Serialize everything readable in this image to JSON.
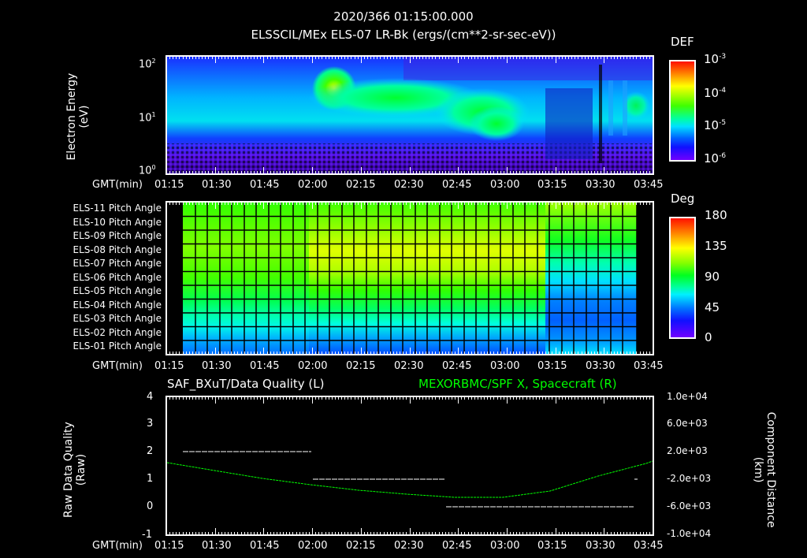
{
  "header": {
    "timestamp": "2020/366 01:15:00.000",
    "subtitle": "ELSSCIL/MEx ELS-07 LR-Bk  (ergs/(cm**2-sr-sec-eV))"
  },
  "time_axis": {
    "label": "GMT(min)",
    "ticks": [
      "01:15",
      "01:30",
      "01:45",
      "02:00",
      "02:15",
      "02:30",
      "02:45",
      "03:00",
      "03:15",
      "03:30",
      "03:45"
    ]
  },
  "spectrogram_panel": {
    "ylabel_line1": "Electron Energy",
    "ylabel_line2": "(eV)",
    "yticks": [
      {
        "base": "10",
        "exp": "2"
      },
      {
        "base": "10",
        "exp": "1"
      },
      {
        "base": "10",
        "exp": "0"
      }
    ],
    "colorbar": {
      "title": "DEF",
      "ticks": [
        {
          "base": "10",
          "exp": "-3"
        },
        {
          "base": "10",
          "exp": "-4"
        },
        {
          "base": "10",
          "exp": "-5"
        },
        {
          "base": "10",
          "exp": "-6"
        }
      ]
    }
  },
  "pitch_panel": {
    "rows": [
      "ELS-11 Pitch Angle",
      "ELS-10 Pitch Angle",
      "ELS-09 Pitch Angle",
      "ELS-08 Pitch Angle",
      "ELS-07 Pitch Angle",
      "ELS-06 Pitch Angle",
      "ELS-05 Pitch Angle",
      "ELS-04 Pitch Angle",
      "ELS-03 Pitch Angle",
      "ELS-02 Pitch Angle",
      "ELS-01 Pitch Angle"
    ],
    "colorbar": {
      "title": "Deg",
      "ticks": [
        "180",
        "135",
        "90",
        "45",
        "0"
      ]
    }
  },
  "line_panel": {
    "left_title": "SAF_BXuT/Data Quality (L)",
    "right_title": "MEXORBMC/SPF X, Spacecraft (R)",
    "right_title_color": "#00ff00",
    "ylabel_left_line1": "Raw Data Quality",
    "ylabel_left_line2": "(Raw)",
    "ylabel_right_line1": "Component Distance",
    "ylabel_right_line2": "(km)",
    "left_ticks": [
      "4",
      "3",
      "2",
      "1",
      "0",
      "-1"
    ],
    "right_ticks": [
      "1.0e+04",
      "6.0e+03",
      "2.0e+03",
      "-2.0e+03",
      "-6.0e+03",
      "-1.0e+04"
    ]
  },
  "chart_data": [
    {
      "type": "heatmap",
      "title": "ELSSCIL/MEx ELS-07 LR-Bk (ergs/(cm**2-sr-sec-eV))",
      "xlabel": "GMT(min)",
      "ylabel": "Electron Energy (eV)",
      "x_range": [
        "01:15",
        "03:45"
      ],
      "y_scale": "log",
      "ylim": [
        1,
        150
      ],
      "colorbar": {
        "label": "DEF",
        "scale": "log",
        "range": [
          1e-06,
          0.001
        ]
      },
      "features": [
        {
          "time": "02:03-02:07",
          "energy_eV": 50,
          "level": 0.0003,
          "note": "peak flux onset"
        },
        {
          "time": "02:05-02:55",
          "energy_eV": "15-40",
          "level": 0.0001,
          "note": "band drifting to lower energy"
        },
        {
          "time": "02:45-03:00",
          "energy_eV": "5-15",
          "level": 8e-05
        },
        {
          "time": "03:20-03:45",
          "energy_eV": "10-20",
          "level": 3e-05,
          "note": "intermittent bursts"
        }
      ]
    },
    {
      "type": "heatmap",
      "title": "Pitch Angle",
      "xlabel": "GMT(min)",
      "categories": [
        "ELS-11",
        "ELS-10",
        "ELS-09",
        "ELS-08",
        "ELS-07",
        "ELS-06",
        "ELS-05",
        "ELS-04",
        "ELS-03",
        "ELS-02",
        "ELS-01"
      ],
      "x_range": [
        "01:19",
        "03:41"
      ],
      "colorbar": {
        "label": "Deg",
        "range": [
          0,
          180
        ]
      },
      "approx_values_deg": {
        "01:20-03:10": [
          100,
          105,
          112,
          118,
          110,
          100,
          92,
          82,
          70,
          55,
          40
        ],
        "03:20-03:40": [
          100,
          98,
          95,
          92,
          80,
          65,
          52,
          40,
          40,
          45,
          58
        ]
      }
    },
    {
      "type": "line",
      "title": "SAF_BXuT/Data Quality (L) | MEXORBMC/SPF X, Spacecraft (R)",
      "xlabel": "GMT(min)",
      "x": [
        "01:15",
        "01:30",
        "01:45",
        "02:00",
        "02:15",
        "02:30",
        "02:45",
        "03:00",
        "03:15",
        "03:30",
        "03:45"
      ],
      "series": [
        {
          "name": "SAF_BXuT/Data Quality (L)",
          "axis": "left",
          "ylim": [
            -1,
            4
          ],
          "color": "#ffffff",
          "segments": [
            {
              "from": "01:17",
              "to": "02:00",
              "value": 2
            },
            {
              "from": "02:00",
              "to": "02:43",
              "value": 1
            },
            {
              "from": "02:43",
              "to": "03:41",
              "value": 0
            },
            {
              "from": "03:41",
              "to": "03:41",
              "value": 1
            }
          ]
        },
        {
          "name": "MEXORBMC/SPF X, Spacecraft (R)",
          "axis": "right",
          "ylim": [
            -10000,
            10000
          ],
          "color": "#00ff00",
          "values": [
            1600,
            500,
            -600,
            -1600,
            -3200,
            -4300,
            -5200,
            -5300,
            -4400,
            -1800,
            1600
          ]
        }
      ]
    }
  ]
}
